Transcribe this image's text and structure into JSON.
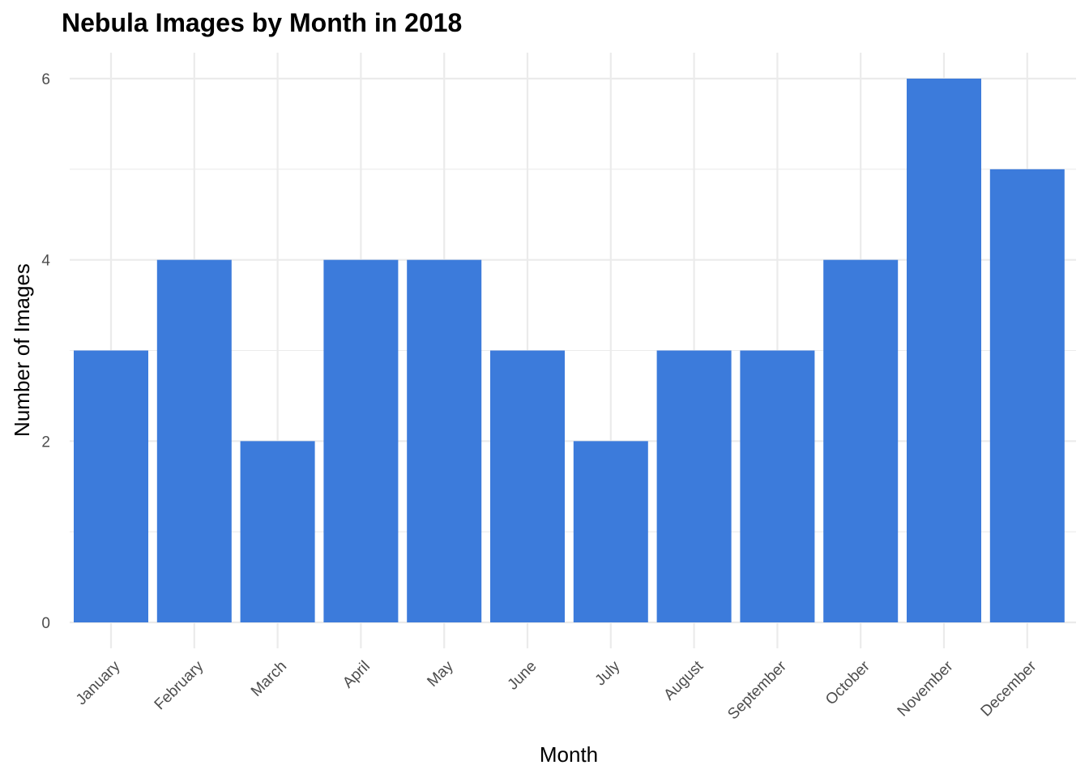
{
  "chart_data": {
    "type": "bar",
    "title": "Nebula Images by Month in 2018",
    "xlabel": "Month",
    "ylabel": "Number of Images",
    "categories": [
      "January",
      "February",
      "March",
      "April",
      "May",
      "June",
      "July",
      "August",
      "September",
      "October",
      "November",
      "December"
    ],
    "values": [
      3,
      4,
      2,
      4,
      4,
      3,
      2,
      3,
      3,
      4,
      6,
      5
    ],
    "ylim": [
      0,
      6.3
    ],
    "yticks": [
      0,
      2,
      4,
      6
    ],
    "grid": true,
    "legend": "none",
    "bar_color": "#3c7bdb",
    "grid_color": "#ebebeb"
  }
}
